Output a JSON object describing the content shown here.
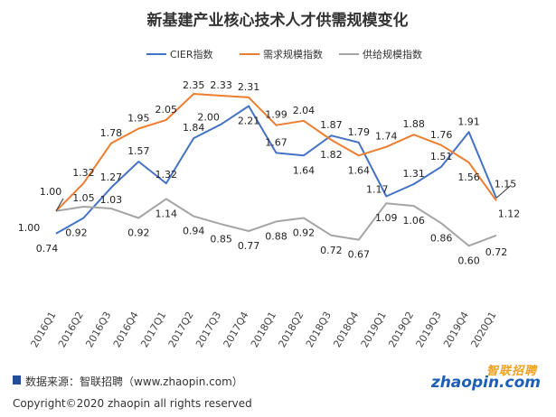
{
  "chart_data": {
    "type": "line",
    "title": "新基建产业核心技术人才供需规模变化",
    "categories": [
      "2016Q1",
      "2016Q2",
      "2016Q3",
      "2016Q4",
      "2017Q1",
      "2017Q2",
      "2017Q3",
      "2017Q4",
      "2018Q1",
      "2018Q2",
      "2018Q3",
      "2018Q4",
      "2019Q1",
      "2019Q2",
      "2019Q3",
      "2019Q4",
      "2020Q1"
    ],
    "series": [
      {
        "name": "CIER指数",
        "color": "#4472c4",
        "values": [
          0.74,
          0.92,
          1.27,
          1.57,
          1.32,
          1.84,
          2.0,
          2.21,
          1.67,
          1.64,
          1.87,
          1.79,
          1.17,
          1.31,
          1.51,
          1.91,
          1.15
        ]
      },
      {
        "name": "需求规模指数",
        "color": "#ed7d31",
        "values": [
          1.0,
          1.32,
          1.78,
          1.95,
          2.05,
          2.35,
          2.33,
          2.31,
          1.99,
          2.04,
          1.82,
          1.64,
          1.74,
          1.88,
          1.76,
          1.56,
          1.12
        ]
      },
      {
        "name": "供给规模指数",
        "color": "#a5a5a5",
        "values": [
          1.0,
          1.05,
          1.03,
          0.92,
          1.14,
          0.94,
          0.85,
          0.77,
          0.88,
          0.92,
          0.72,
          0.67,
          1.09,
          1.06,
          0.86,
          0.6,
          0.72
        ]
      }
    ],
    "ylim": [
      0.0,
      2.6
    ],
    "legend": "top-center",
    "grid": false
  },
  "footer": {
    "source": "数据来源：智联招聘（www.zhaopin.com）",
    "copyright": "Copyright©2020 zhaopin all rights reserved"
  },
  "logo": {
    "cn": "智联招聘",
    "en": "zhaopin.com"
  }
}
